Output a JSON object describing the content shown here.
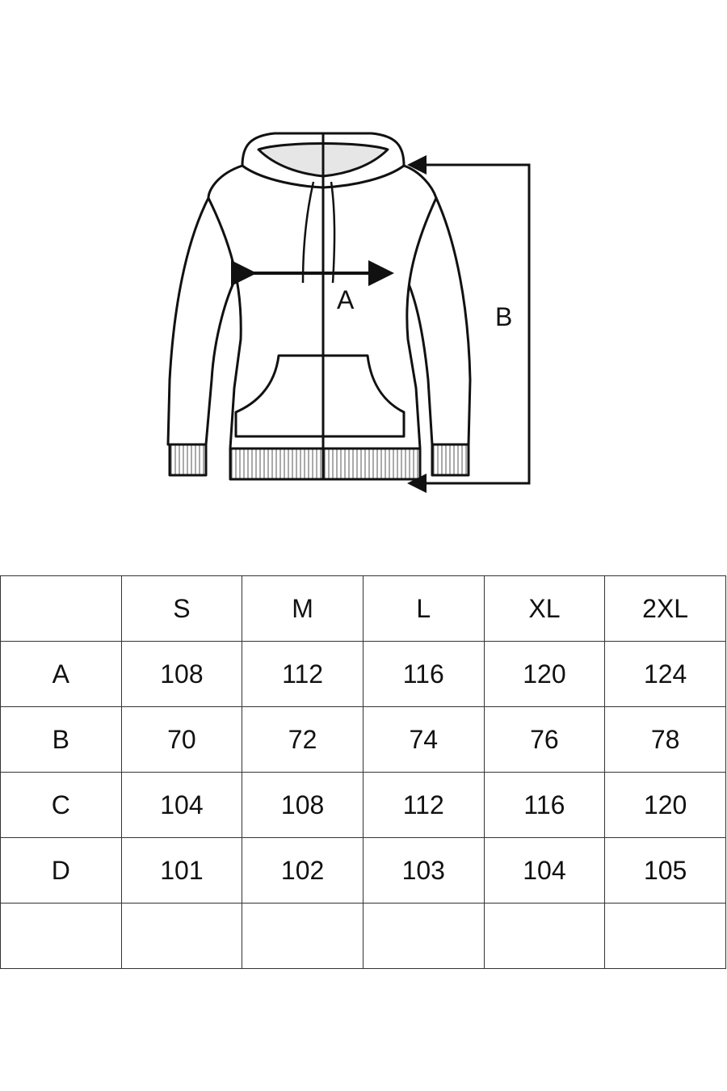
{
  "diagram": {
    "label_a": "A",
    "label_b": "B"
  },
  "size_table": {
    "columns": [
      "",
      "S",
      "M",
      "L",
      "XL",
      "2XL"
    ],
    "rows": [
      [
        "A",
        "108",
        "112",
        "116",
        "120",
        "124"
      ],
      [
        "B",
        "70",
        "72",
        "74",
        "76",
        "78"
      ],
      [
        "C",
        "104",
        "108",
        "112",
        "116",
        "120"
      ],
      [
        "D",
        "101",
        "102",
        "103",
        "104",
        "105"
      ],
      [
        "",
        "",
        "",
        "",
        "",
        ""
      ]
    ]
  }
}
